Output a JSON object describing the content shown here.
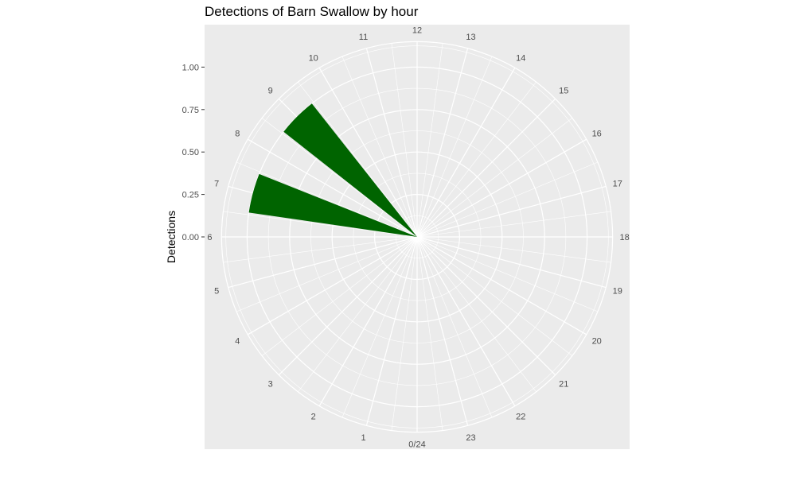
{
  "chart_data": {
    "type": "bar",
    "coord": "polar",
    "title": "Detections of Barn Swallow by hour",
    "ylabel": "Detections",
    "xlabel": "",
    "ylim": [
      0,
      1.15
    ],
    "y_ticks": [
      "0.00",
      "0.25",
      "0.50",
      "0.75",
      "1.00"
    ],
    "y_tick_values": [
      0,
      0.25,
      0.5,
      0.75,
      1.0
    ],
    "hour_labels": [
      "0/24",
      "1",
      "2",
      "3",
      "4",
      "5",
      "6",
      "7",
      "8",
      "9",
      "10",
      "11",
      "12",
      "13",
      "14",
      "15",
      "16",
      "17",
      "18",
      "19",
      "20",
      "21",
      "22",
      "23"
    ],
    "bars": [
      {
        "hour": 7,
        "value": 1
      },
      {
        "hour": 9,
        "value": 1
      }
    ],
    "bar_color": "#006400",
    "panel_background": "#ebebeb",
    "grid_color": "#ffffff"
  }
}
